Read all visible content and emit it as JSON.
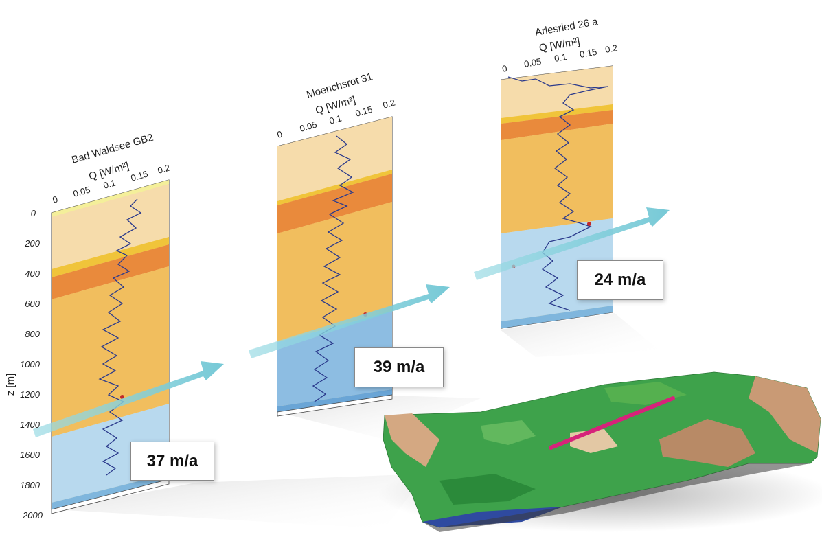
{
  "wells": [
    {
      "name": "Bad Waldsee GB2",
      "unit_label": "Q [W/m²]",
      "flow_speed": "37 m/a",
      "color_layers": [
        "#f7e9a0",
        "#f5d9a6",
        "#f1c24c",
        "#e98a3c",
        "#f0bc5c",
        "#b9d8ec",
        "#7fb6dd"
      ]
    },
    {
      "name": "Moenchsrot 31",
      "unit_label": "Q [W/m²]",
      "flow_speed": "39 m/a"
    },
    {
      "name": "Arlesried 26 a",
      "unit_label": "Q [W/m²]",
      "flow_speed": "24 m/a"
    }
  ],
  "x_ticks": [
    "0",
    "0.05",
    "0.1",
    "0.15",
    "0.2"
  ],
  "z_axis": {
    "label": "z [m]",
    "ticks": [
      "0",
      "200",
      "400",
      "600",
      "800",
      "1000",
      "1200",
      "1400",
      "1600",
      "1800",
      "2000"
    ]
  },
  "colors": {
    "log_line": "#2b3a8c",
    "arrow": "#7fd0dc",
    "profile_line": "#d6237a",
    "terrain_green": "#3aa84a",
    "terrain_tan": "#d9b48c"
  }
}
